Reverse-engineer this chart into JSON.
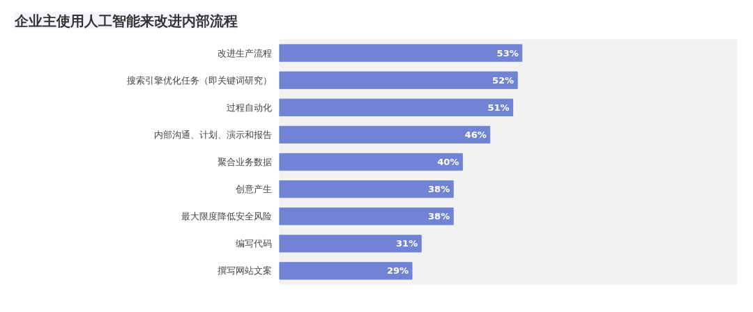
{
  "chart_data": {
    "type": "bar",
    "orientation": "horizontal",
    "title": "企业主使用人工智能来改进内部流程",
    "categories": [
      "改进生产流程",
      "搜索引擎优化任务（即关键词研究）",
      "过程自动化",
      "内部沟通、计划、演示和报告",
      "聚合业务数据",
      "创意产生",
      "最大限度降低安全风险",
      "编写代码",
      "撰写网站文案"
    ],
    "values": [
      53,
      52,
      51,
      46,
      40,
      38,
      38,
      31,
      29
    ],
    "value_labels": [
      "53%",
      "52%",
      "51%",
      "46%",
      "40%",
      "38%",
      "38%",
      "31%",
      "29%"
    ],
    "color": "#7083d5",
    "xlim": [
      0,
      100
    ],
    "tick_labels": "y",
    "grid": false
  }
}
